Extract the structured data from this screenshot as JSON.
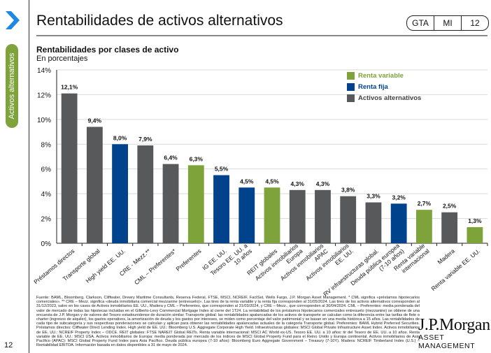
{
  "slide": {
    "title": "Rentabilidades de activos alternativos",
    "badge": [
      "GTA",
      "MI",
      "12"
    ],
    "side_tab": "Activos alternativos",
    "page_number": "12",
    "nav_icon": "chevron-right-icon",
    "brand": {
      "main": "J.P.Morgan",
      "sub": "ASSET MANAGEMENT"
    },
    "footnote": "Fuente: BAML, Bloomberg, Clarkson, Cliffwater, Drewry Maritime Consultants, Reserva Federal, FTSE, MSCI, NCREIF, FactSet, Wells Fargo, J.P. Morgan Asset Management. * CML significa «préstamos hipotecarios comerciales». ** CRE – Mezz. significa «deuda inmobiliaria comercial mezzanine (entresuelo)». Las tires de la renta variable y la renta fija corresponden al 31/05/2024. Las tires de los activos alternativos corresponden al 31/12/2023, salvo en los casos de Activos inmobiliarios EE. UU., Madera y CML – Preferentes, que corresponden al 31/03/2024, y CRE – Mezz., que corresponden al 30/04/2024. CML – Preferentes: media ponderada del valor de mercado de todas las hipotecas incluidas en el Gilberto-Levy Commercial Mortgage Index al cierre del 1T24. La rentabilidad de los préstamos hipotecarios comerciales entresuelo (mezzanine) se obtiene de una encuesta de J.P. Morgan y de valores del Tesoro estadounidense de duración similar. Transporte global: las rentabilidades apalancadas de los activos de transporte se calculan como la diferencia entre las tarifas de flete o charter (ingresos de alquiler), los gastos operativos, la amortización de deuda y los gastos por intereses, se miden como porcentaje del valor patrimonial y se basan en una media histórica a 15 años. Las rentabilidades de cada tipo de subcategoría y sus respectivas ponderaciones se calculan y aplican para obtener las rentabilidades apalancadas actuales de la categoría Transporte global. Preferentes: BAML Hybrid Preferred Securities. Préstamos directos: Cliffwater Direct Lending Index. High yield de EE. UU.: Bloomberg U.S. Aggregate Corporate High Yield. Infraestructuras globales: MSCI Global Private Infrastructure Asset Index. Activos inmobiliarios de EE. UU.: NCREIF Property Index – ODCE. REIT globales: FTSE NAREIT Global REITs. Renta variable internacional: MSCI AC World ex-US. Tesoro EE. UU. a 10 años: tir del Tesoro de EE. UU. a 10 años. Renta variable de EE. UU.: MSCI USA. Activos inmobiliarios de Europa: media ponderada por mercado de los índices de MSCI Global Property Fund para el Reino Unido y Europa continental. Activos inmobiliarios de Asia Pacífico (APAC): MSCI Global Property Fund Index para Asia Pacífico. Deuda pública europea (7-10 años): Bloomberg Euro Aggregate Government – Treasury (7-10Y). Madera: NCREIF Timberland Index (U.S.) – Rentabilidad EBITDA. Información basada en datos disponibles a 31 de mayo de 2024."
  },
  "colors": {
    "renta_variable": "#7ea33b",
    "renta_fija": "#00438c",
    "activos_alternativos": "#58595b",
    "chevron": "#1e88e5",
    "side_tab": "#7ea33b"
  },
  "chart_data": {
    "type": "bar",
    "title": "Rentabilidades por clases de activo",
    "subtitle": "En porcentajes",
    "xlabel": "",
    "ylabel": "",
    "ylim": [
      0,
      14
    ],
    "yticks": [
      0,
      2,
      4,
      6,
      8,
      10,
      12,
      14
    ],
    "ytick_labels": [
      "0%",
      "2%",
      "4%",
      "6%",
      "8%",
      "10%",
      "12%",
      "14%"
    ],
    "grid": true,
    "legend_position": "top-right",
    "legend": [
      {
        "key": "renta_variable",
        "label": "Renta variable"
      },
      {
        "key": "renta_fija",
        "label": "Renta fija"
      },
      {
        "key": "activos_alternativos",
        "label": "Activos alternativos"
      }
    ],
    "categories": [
      "Préstamos directos",
      "Transporte global",
      "High yield EE. UU.",
      "CRE - Mezz.**",
      "CML – Preferentes*",
      "Preferentes",
      "IG EE. UU.",
      "Tesoro EE. UU. a 10 años",
      "REIT globales",
      "Activos inmobiliarios Europa",
      "Activos inmobiliarios APAC",
      "Activos inmobiliarios EE. UU.",
      "RV infraestructuras global.",
      "Deuda pública europea (7-10 años)",
      "Renta variable internacional",
      "Madera",
      "Renta variable EE. UU."
    ],
    "category_lines": [
      [
        "Préstamos directos"
      ],
      [
        "Transporte global"
      ],
      [
        "High yield EE. UU."
      ],
      [
        "CRE - Mezz.**"
      ],
      [
        "CML – Preferentes*"
      ],
      [
        "Preferentes"
      ],
      [
        "IG EE. UU."
      ],
      [
        "Tesoro EE. UU. a",
        "10 años"
      ],
      [
        "REIT globales"
      ],
      [
        "Activos inmobiliarios",
        "Europa"
      ],
      [
        "Activos inmobiliarios",
        "APAC"
      ],
      [
        "Activos inmobiliarios",
        "EE. UU."
      ],
      [
        "RV infraestructuras global."
      ],
      [
        "Deuda pública europea",
        "(7-10 años)"
      ],
      [
        "Renta variable",
        "internacional"
      ],
      [
        "Madera"
      ],
      [
        "Renta variable EE. UU."
      ]
    ],
    "values": [
      12.1,
      9.4,
      8.0,
      7.9,
      6.4,
      6.3,
      5.5,
      4.5,
      4.5,
      4.3,
      4.3,
      3.8,
      3.3,
      3.2,
      2.7,
      2.5,
      1.3
    ],
    "value_labels": [
      "12,1%",
      "9,4%",
      "8,0%",
      "7,9%",
      "6,4%",
      "6,3%",
      "5,5%",
      "4,5%",
      "4,5%",
      "4,3%",
      "4,3%",
      "3,8%",
      "3,3%",
      "3,2%",
      "2,7%",
      "2,5%",
      "1,3%"
    ],
    "groups": [
      "activos_alternativos",
      "activos_alternativos",
      "renta_fija",
      "activos_alternativos",
      "activos_alternativos",
      "renta_variable",
      "renta_fija",
      "renta_fija",
      "renta_variable",
      "activos_alternativos",
      "activos_alternativos",
      "activos_alternativos",
      "activos_alternativos",
      "renta_fija",
      "renta_variable",
      "activos_alternativos",
      "renta_variable"
    ]
  }
}
